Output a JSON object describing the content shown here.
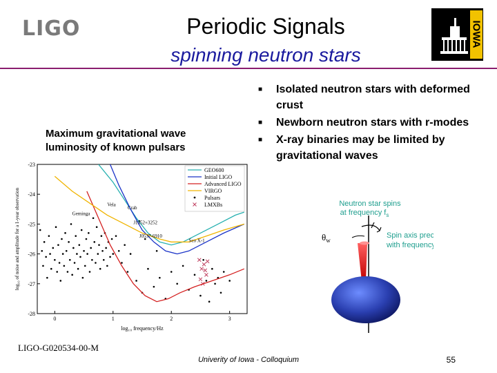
{
  "header": {
    "logo_text": "LIGO",
    "title": "Periodic Signals",
    "subtitle": "spinning neutron stars",
    "iowa_logo_text": "IOWA"
  },
  "caption": "Maximum gravitational wave luminosity of known pulsars",
  "bullets": [
    "Isolated neutron stars with deformed crust",
    "Newborn neutron stars with r-modes",
    "X-ray binaries may be limited by gravitational waves"
  ],
  "chart_data": {
    "type": "line",
    "xlabel": "log₁₀ frequency/Hz",
    "ylabel": "log₁₀ of noise and amplitude for a 1-year observation",
    "xlim": [
      -0.3,
      3.3
    ],
    "ylim": [
      -28,
      -23
    ],
    "x_ticks": [
      "0",
      "1",
      "2",
      "3"
    ],
    "y_ticks": [
      "-23",
      "-24",
      "-25",
      "-26",
      "-27",
      "-28"
    ],
    "legend": [
      "GEO600",
      "Initial LIGO",
      "Advanced LIGO",
      "VIRGO",
      "Pulsars",
      "LMXBs"
    ],
    "legend_position": "top-right",
    "annotations": [
      "Geminga",
      "Vela",
      "Crab",
      "J1952+3252",
      "J0537-6910",
      "Sco X-1"
    ],
    "series": [
      {
        "name": "GEO600",
        "color": "#26b0b0",
        "x": [
          0.75,
          1.0,
          1.2,
          1.4,
          1.6,
          1.8,
          2.0,
          2.2,
          2.5,
          2.8,
          3.1,
          3.25
        ],
        "y": [
          -23.0,
          -23.6,
          -24.2,
          -24.8,
          -25.3,
          -25.6,
          -25.7,
          -25.6,
          -25.3,
          -25.0,
          -24.7,
          -24.6
        ]
      },
      {
        "name": "Initial LIGO",
        "color": "#1a33c8",
        "x": [
          0.95,
          1.1,
          1.3,
          1.5,
          1.7,
          1.9,
          2.1,
          2.3,
          2.6,
          2.9,
          3.25
        ],
        "y": [
          -23.0,
          -23.7,
          -24.5,
          -25.2,
          -25.6,
          -25.9,
          -26.0,
          -25.9,
          -25.6,
          -25.3,
          -25.0
        ]
      },
      {
        "name": "Advanced LIGO",
        "color": "#d42020",
        "x": [
          0.55,
          0.75,
          0.95,
          1.15,
          1.35,
          1.55,
          1.75,
          1.95,
          2.15,
          2.4,
          2.7,
          3.0,
          3.25
        ],
        "y": [
          -23.9,
          -24.8,
          -25.7,
          -26.4,
          -27.0,
          -27.4,
          -27.6,
          -27.5,
          -27.3,
          -27.1,
          -26.9,
          -26.7,
          -26.5
        ]
      },
      {
        "name": "VIRGO",
        "color": "#f0b400",
        "x": [
          0.0,
          0.3,
          0.6,
          0.9,
          1.2,
          1.5,
          1.8,
          2.0,
          2.3,
          2.6,
          2.9,
          3.25
        ],
        "y": [
          -23.4,
          -23.9,
          -24.3,
          -24.7,
          -25.0,
          -25.3,
          -25.5,
          -25.6,
          -25.6,
          -25.4,
          -25.2,
          -25.0
        ]
      }
    ],
    "pulsars": [
      [
        -0.25,
        -25.2
      ],
      [
        -0.22,
        -25.9
      ],
      [
        -0.2,
        -26.4
      ],
      [
        -0.18,
        -25.6
      ],
      [
        -0.15,
        -26.1
      ],
      [
        -0.13,
        -26.8
      ],
      [
        -0.1,
        -25.4
      ],
      [
        -0.08,
        -26.0
      ],
      [
        -0.06,
        -26.5
      ],
      [
        -0.03,
        -25.8
      ],
      [
        0.0,
        -26.2
      ],
      [
        0.02,
        -25.1
      ],
      [
        0.04,
        -26.6
      ],
      [
        0.06,
        -25.7
      ],
      [
        0.08,
        -26.3
      ],
      [
        0.1,
        -26.9
      ],
      [
        0.12,
        -25.5
      ],
      [
        0.14,
        -26.0
      ],
      [
        0.16,
        -26.4
      ],
      [
        0.18,
        -25.3
      ],
      [
        0.2,
        -25.9
      ],
      [
        0.22,
        -26.6
      ],
      [
        0.24,
        -25.6
      ],
      [
        0.26,
        -26.2
      ],
      [
        0.28,
        -25.0
      ],
      [
        0.3,
        -26.7
      ],
      [
        0.32,
        -25.8
      ],
      [
        0.34,
        -26.3
      ],
      [
        0.36,
        -25.4
      ],
      [
        0.38,
        -26.0
      ],
      [
        0.4,
        -26.5
      ],
      [
        0.42,
        -25.7
      ],
      [
        0.44,
        -26.1
      ],
      [
        0.46,
        -25.2
      ],
      [
        0.48,
        -26.8
      ],
      [
        0.5,
        -25.9
      ],
      [
        0.52,
        -26.4
      ],
      [
        0.54,
        -25.5
      ],
      [
        0.56,
        -26.0
      ],
      [
        0.58,
        -25.3
      ],
      [
        0.6,
        -26.6
      ],
      [
        0.62,
        -25.8
      ],
      [
        0.64,
        -26.2
      ],
      [
        0.66,
        -24.8
      ],
      [
        0.68,
        -25.6
      ],
      [
        0.7,
        -26.3
      ],
      [
        0.72,
        -25.1
      ],
      [
        0.74,
        -26.0
      ],
      [
        0.76,
        -25.7
      ],
      [
        0.78,
        -26.5
      ],
      [
        0.8,
        -25.4
      ],
      [
        0.82,
        -25.9
      ],
      [
        0.84,
        -26.2
      ],
      [
        0.86,
        -25.3
      ],
      [
        0.88,
        -25.8
      ],
      [
        0.9,
        -26.4
      ],
      [
        0.92,
        -25.6
      ],
      [
        0.95,
        -26.1
      ],
      [
        0.98,
        -25.5
      ],
      [
        1.0,
        -26.0
      ],
      [
        1.05,
        -25.4
      ],
      [
        1.1,
        -25.9
      ],
      [
        1.15,
        -26.3
      ],
      [
        1.2,
        -25.7
      ],
      [
        1.25,
        -26.6
      ],
      [
        1.3,
        -26.0
      ],
      [
        1.4,
        -26.9
      ],
      [
        1.5,
        -27.3
      ],
      [
        1.6,
        -26.5
      ],
      [
        1.7,
        -27.1
      ],
      [
        1.8,
        -26.8
      ],
      [
        1.9,
        -27.5
      ],
      [
        2.0,
        -26.6
      ],
      [
        2.1,
        -27.0
      ],
      [
        2.2,
        -26.4
      ],
      [
        2.3,
        -27.2
      ],
      [
        2.4,
        -26.7
      ],
      [
        2.5,
        -27.4
      ],
      [
        2.55,
        -26.2
      ],
      [
        2.6,
        -26.9
      ],
      [
        2.65,
        -27.6
      ],
      [
        2.7,
        -26.5
      ],
      [
        2.75,
        -27.0
      ],
      [
        2.8,
        -26.8
      ],
      [
        2.85,
        -27.3
      ],
      [
        2.9,
        -26.6
      ],
      [
        3.0,
        -26.9
      ],
      [
        1.45,
        -24.9
      ],
      [
        1.55,
        -25.5
      ],
      [
        1.75,
        -25.9
      ]
    ],
    "lmxbs": [
      [
        2.48,
        -26.2
      ],
      [
        2.52,
        -26.5
      ],
      [
        2.56,
        -26.35
      ],
      [
        2.6,
        -26.7
      ],
      [
        2.5,
        -26.85
      ],
      [
        2.62,
        -26.25
      ],
      [
        2.54,
        -27.0
      ],
      [
        2.58,
        -26.55
      ]
    ]
  },
  "diagram": {
    "spin_label_line1": "Neutron star spins",
    "spin_label_line2": "at frequency f",
    "spin_label_sub": "s",
    "precess_label_line1": "Spin axis precesses",
    "precess_label_line2": "with frequency f",
    "precess_label_sub": "p",
    "angle_label": "θ",
    "angle_sub": "w",
    "label_color": "#1e9e8e",
    "star_color": "#2a3fb0",
    "beam_color": "#e02020"
  },
  "footer": {
    "left": "LIGO-G020534-00-M",
    "center": "Univerity of Iowa - Colloquium",
    "page": "55"
  }
}
